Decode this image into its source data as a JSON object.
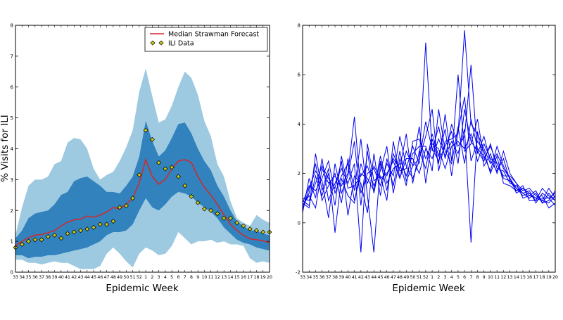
{
  "chart_data": [
    {
      "type": "line",
      "xlabel": "Epidemic Week",
      "ylabel": "% Visits for ILI",
      "ylim": [
        0,
        8
      ],
      "yticks": [
        0,
        1,
        2,
        3,
        4,
        5,
        6,
        7,
        8
      ],
      "categories": [
        "33",
        "34",
        "35",
        "36",
        "37",
        "38",
        "39",
        "40",
        "41",
        "42",
        "43",
        "44",
        "45",
        "46",
        "47",
        "48",
        "49",
        "50",
        "51",
        "52",
        "1",
        "2",
        "3",
        "4",
        "5",
        "6",
        "7",
        "8",
        "9",
        "10",
        "11",
        "12",
        "13",
        "14",
        "15",
        "16",
        "17",
        "18",
        "19",
        "20"
      ],
      "legend": {
        "position": "top-right",
        "entries": [
          "Median Strawman Forecast",
          "ILI Data"
        ]
      },
      "series": [
        {
          "name": "Median Strawman Forecast",
          "kind": "line",
          "color": "#d62728",
          "values": [
            0.85,
            1.0,
            1.12,
            1.2,
            1.22,
            1.28,
            1.35,
            1.5,
            1.62,
            1.7,
            1.72,
            1.82,
            1.78,
            1.85,
            1.95,
            2.1,
            2.05,
            2.2,
            2.4,
            2.9,
            3.65,
            3.1,
            2.85,
            3.0,
            3.35,
            3.6,
            3.65,
            3.55,
            3.1,
            2.75,
            2.5,
            2.2,
            1.85,
            1.55,
            1.35,
            1.2,
            1.08,
            1.05,
            1.02,
            0.95
          ]
        },
        {
          "name": "ILI Data",
          "kind": "markers",
          "color": "#c8c814",
          "values": [
            0.8,
            0.9,
            1.0,
            1.05,
            1.05,
            1.15,
            1.2,
            1.1,
            1.25,
            1.3,
            1.35,
            1.4,
            1.45,
            1.55,
            1.55,
            1.65,
            2.1,
            2.15,
            2.4,
            3.15,
            4.6,
            4.3,
            3.55,
            3.35,
            3.4,
            3.1,
            2.8,
            2.45,
            2.25,
            2.05,
            2.0,
            1.9,
            1.75,
            1.75,
            1.6,
            1.5,
            1.4,
            1.35,
            1.3,
            1.3
          ]
        }
      ],
      "bands": [
        {
          "name": "",
          "color": "#9ecae1",
          "lower": [
            0.4,
            0.4,
            0.3,
            0.3,
            0.25,
            0.3,
            0.35,
            0.3,
            0.3,
            0.2,
            0.1,
            0.1,
            0.1,
            0.2,
            0.6,
            0.8,
            0.6,
            0.35,
            0.15,
            0.6,
            0.8,
            0.7,
            0.55,
            0.6,
            0.85,
            1.3,
            1.1,
            0.9,
            1.0,
            1.0,
            1.05,
            0.95,
            1.0,
            0.9,
            0.9,
            0.85,
            0.45,
            0.3,
            0.35,
            0.3
          ],
          "upper": [
            1.2,
            2.1,
            2.8,
            3.0,
            3.0,
            3.1,
            3.5,
            3.6,
            4.2,
            4.35,
            4.3,
            4.0,
            3.35,
            3.0,
            3.15,
            3.25,
            3.6,
            4.05,
            4.6,
            5.85,
            6.6,
            5.7,
            4.85,
            4.95,
            5.4,
            6.0,
            6.5,
            6.3,
            5.75,
            4.9,
            4.4,
            3.5,
            3.1,
            2.3,
            1.75,
            1.6,
            1.5,
            1.85,
            1.7,
            1.6
          ]
        },
        {
          "name": "",
          "color": "#3182bd",
          "lower": [
            0.55,
            0.55,
            0.45,
            0.5,
            0.5,
            0.55,
            0.55,
            0.6,
            0.65,
            0.7,
            0.75,
            0.8,
            0.9,
            1.0,
            1.2,
            1.3,
            1.3,
            1.35,
            1.55,
            2.0,
            2.4,
            2.1,
            2.0,
            2.2,
            2.45,
            2.6,
            2.55,
            2.45,
            2.25,
            2.1,
            1.95,
            1.75,
            1.45,
            1.25,
            1.05,
            0.95,
            0.9,
            0.8,
            0.75,
            0.7
          ],
          "upper": [
            1.1,
            1.35,
            1.75,
            1.9,
            1.95,
            2.0,
            2.2,
            2.5,
            2.6,
            2.95,
            3.05,
            3.1,
            2.95,
            2.8,
            2.6,
            2.6,
            2.55,
            2.8,
            3.1,
            3.75,
            4.9,
            4.25,
            3.75,
            3.95,
            4.35,
            4.8,
            4.85,
            4.5,
            4.0,
            3.6,
            3.3,
            2.8,
            2.45,
            2.0,
            1.65,
            1.5,
            1.35,
            1.35,
            1.25,
            1.2
          ]
        }
      ]
    },
    {
      "type": "line",
      "xlabel": "Epidemic Week",
      "ylabel": "",
      "ylim": [
        -2,
        8
      ],
      "yticks": [
        -2,
        0,
        2,
        4,
        6,
        8
      ],
      "categories": [
        "33",
        "34",
        "35",
        "36",
        "37",
        "38",
        "39",
        "40",
        "41",
        "42",
        "43",
        "44",
        "45",
        "46",
        "47",
        "48",
        "49",
        "50",
        "51",
        "52",
        "1",
        "2",
        "3",
        "4",
        "5",
        "6",
        "7",
        "8",
        "9",
        "10",
        "11",
        "12",
        "13",
        "14",
        "15",
        "16",
        "17",
        "18",
        "19",
        "20"
      ],
      "color": "#0000ee",
      "series": [
        {
          "values": [
            0.8,
            0.6,
            2.8,
            1.3,
            2.2,
            -0.4,
            1.8,
            1.1,
            0.8,
            2.4,
            1.6,
            2.3,
            1.8,
            2.0,
            2.5,
            1.8,
            2.9,
            2.3,
            2.6,
            3.5,
            4.6,
            2.1,
            3.3,
            3.4,
            3.6,
            7.8,
            4.0,
            3.6,
            3.0,
            2.4,
            2.8,
            2.2,
            1.8,
            1.2,
            1.4,
            1.1,
            1.0,
            0.9,
            1.4,
            1.0
          ]
        },
        {
          "values": [
            0.5,
            1.4,
            2.1,
            1.7,
            0.2,
            2.4,
            1.2,
            1.9,
            3.3,
            0.7,
            2.9,
            1.2,
            2.5,
            1.3,
            2.8,
            2.1,
            2.2,
            3.1,
            2.4,
            7.3,
            2.9,
            3.9,
            2.6,
            4.0,
            3.1,
            3.5,
            6.4,
            2.8,
            3.5,
            2.5,
            2.1,
            2.6,
            1.7,
            1.4,
            1.2,
            1.3,
            0.8,
            1.2,
            1.0,
            0.7
          ]
        },
        {
          "values": [
            1.0,
            0.9,
            1.6,
            2.3,
            1.8,
            1.4,
            2.5,
            0.3,
            1.9,
            1.6,
            0.4,
            2.8,
            1.1,
            2.6,
            1.5,
            2.9,
            1.7,
            2.3,
            3.9,
            1.6,
            3.4,
            2.4,
            4.4,
            2.5,
            6.0,
            2.9,
            3.2,
            4.2,
            2.6,
            3.1,
            2.4,
            1.9,
            1.9,
            1.6,
            1.0,
            1.1,
            1.3,
            0.8,
            0.9,
            1.3
          ]
        },
        {
          "values": [
            0.6,
            1.2,
            2.4,
            0.9,
            1.5,
            2.0,
            0.8,
            2.6,
            1.3,
            3.4,
            1.1,
            -1.2,
            2.4,
            1.9,
            2.6,
            2.2,
            3.6,
            1.6,
            2.9,
            2.2,
            3.6,
            2.7,
            3.8,
            1.9,
            3.7,
            5.1,
            2.5,
            3.3,
            2.9,
            2.0,
            2.7,
            1.6,
            1.5,
            1.3,
            1.5,
            0.9,
            0.9,
            1.4,
            1.1,
            0.9
          ]
        },
        {
          "values": [
            0.4,
            1.8,
            1.0,
            2.6,
            0.9,
            1.6,
            2.2,
            1.6,
            2.4,
            -1.2,
            3.2,
            1.7,
            1.9,
            0.9,
            3.3,
            1.8,
            2.6,
            2.6,
            2.0,
            3.0,
            2.6,
            3.4,
            2.7,
            3.3,
            2.8,
            3.8,
            -0.8,
            3.7,
            2.3,
            2.8,
            2.0,
            2.9,
            2.0,
            1.6,
            1.3,
            1.4,
            1.1,
            0.9,
            0.8,
            1.1
          ]
        },
        {
          "values": [
            0.9,
            0.7,
            1.9,
            1.1,
            2.0,
            0.7,
            2.7,
            1.4,
            1.5,
            1.9,
            2.3,
            1.5,
            2.1,
            3.1,
            1.2,
            2.6,
            1.9,
            2.8,
            3.1,
            3.1,
            2.1,
            4.6,
            2.9,
            2.4,
            3.9,
            2.4,
            4.2,
            3.0,
            2.7,
            2.1,
            3.1,
            2.3,
            1.8,
            1.4,
            1.1,
            1.2,
            1.0,
            1.1,
            0.6,
            0.8
          ]
        },
        {
          "values": [
            0.7,
            1.1,
            0.6,
            2.2,
            1.6,
            1.9,
            1.5,
            2.0,
            4.3,
            1.2,
            2.0,
            2.2,
            1.5,
            2.4,
            1.9,
            3.5,
            2.3,
            1.8,
            2.5,
            4.1,
            3.0,
            2.5,
            3.1,
            3.7,
            2.4,
            4.6,
            3.3,
            2.9,
            2.5,
            3.2,
            2.2,
            2.1,
            1.6,
            1.5,
            1.2,
            1.0,
            1.2,
            0.8,
            1.2,
            0.9
          ]
        },
        {
          "values": [
            0.8,
            1.5,
            1.3,
            1.8,
            2.5,
            1.2,
            1.9,
            2.4,
            0.9,
            2.0,
            1.8,
            1.3,
            2.7,
            1.6,
            2.2,
            2.4,
            1.5,
            3.3,
            3.4,
            2.6,
            3.2,
            3.0,
            2.2,
            3.1,
            3.3,
            3.0,
            3.6,
            2.5,
            3.2,
            2.6,
            2.4,
            1.8,
            1.7,
            1.3,
            1.4,
            1.2,
            0.9,
            1.0,
            1.0,
            1.2
          ]
        }
      ]
    }
  ]
}
